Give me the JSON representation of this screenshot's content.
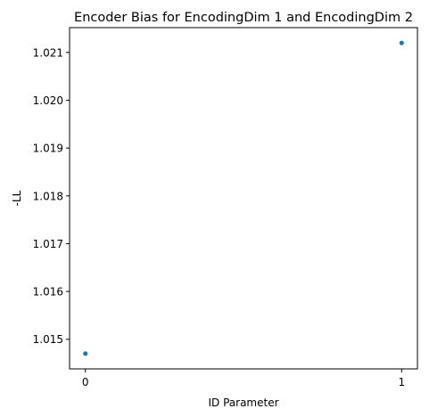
{
  "chart_data": {
    "type": "scatter",
    "title": "Encoder Bias for EncodingDim 1 and EncodingDim 2",
    "xlabel": "ID Parameter",
    "ylabel": "-LL",
    "x": [
      0,
      1
    ],
    "y": [
      1.0147,
      1.0212
    ],
    "xlim": [
      -0.05,
      1.05
    ],
    "ylim": [
      1.01438,
      1.02152
    ],
    "x_ticks": [
      0,
      1
    ],
    "x_tick_labels": [
      "0",
      "1"
    ],
    "y_ticks": [
      1.015,
      1.016,
      1.017,
      1.018,
      1.019,
      1.02,
      1.021
    ],
    "y_tick_labels": [
      "1.015",
      "1.016",
      "1.017",
      "1.018",
      "1.019",
      "1.020",
      "1.021"
    ],
    "grid": false,
    "marker_color": "#1f77b4"
  }
}
